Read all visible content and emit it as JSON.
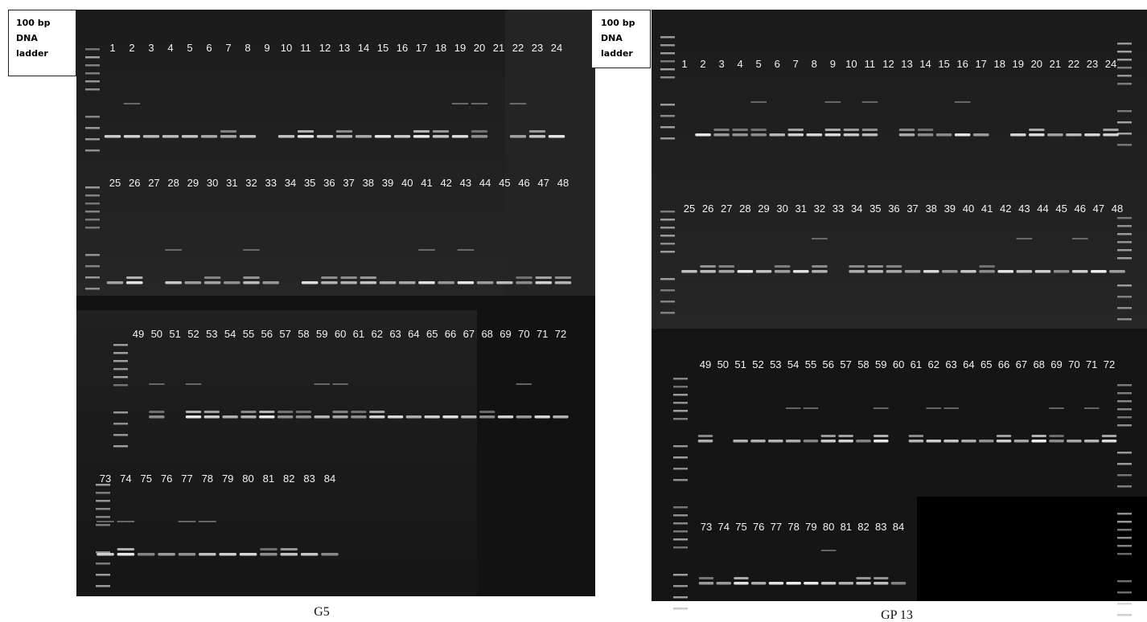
{
  "panels": [
    {
      "ladder_label": [
        "100 bp",
        "DNA",
        "ladder"
      ],
      "caption": "G5",
      "lane_rows": [
        [
          1,
          2,
          3,
          4,
          5,
          6,
          7,
          8,
          9,
          10,
          11,
          12,
          13,
          14,
          15,
          16,
          17,
          18,
          19,
          20,
          21,
          22,
          23,
          24
        ],
        [
          25,
          26,
          27,
          28,
          29,
          30,
          31,
          32,
          33,
          34,
          35,
          36,
          37,
          38,
          39,
          40,
          41,
          42,
          43,
          44,
          45,
          46,
          47,
          48
        ],
        [
          49,
          50,
          51,
          52,
          53,
          54,
          55,
          56,
          57,
          58,
          59,
          60,
          61,
          62,
          63,
          64,
          65,
          66,
          67,
          68,
          69,
          70,
          71,
          72
        ],
        [
          73,
          74,
          75,
          76,
          77,
          78,
          79,
          80,
          81,
          82,
          83,
          84
        ]
      ]
    },
    {
      "ladder_label": [
        "100 bp",
        "DNA",
        "ladder"
      ],
      "caption": "GP 13",
      "lane_rows": [
        [
          1,
          2,
          3,
          4,
          5,
          6,
          7,
          8,
          9,
          10,
          11,
          12,
          13,
          14,
          15,
          16,
          17,
          18,
          19,
          20,
          21,
          22,
          23,
          24
        ],
        [
          25,
          26,
          27,
          28,
          29,
          30,
          31,
          32,
          33,
          34,
          35,
          36,
          37,
          38,
          39,
          40,
          41,
          42,
          43,
          44,
          45,
          46,
          47,
          48
        ],
        [
          49,
          50,
          51,
          52,
          53,
          54,
          55,
          56,
          57,
          58,
          59,
          60,
          61,
          62,
          63,
          64,
          65,
          66,
          67,
          68,
          69,
          70,
          71,
          72
        ],
        [
          73,
          74,
          75,
          76,
          77,
          78,
          79,
          80,
          81,
          82,
          83,
          84
        ]
      ]
    }
  ]
}
